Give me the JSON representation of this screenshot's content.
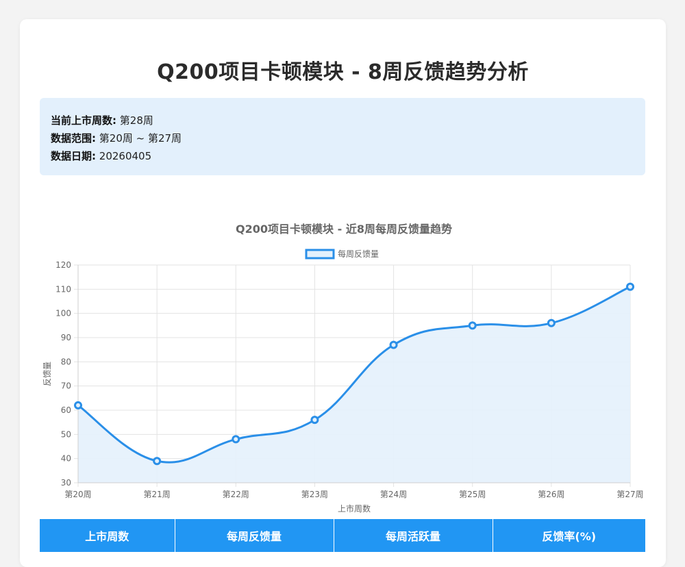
{
  "page": {
    "title": "Q200项目卡顿模块 - 8周反馈趋势分析"
  },
  "info": {
    "current_week_label": "当前上市周数:",
    "current_week_value": "第28周",
    "range_label": "数据范围:",
    "range_value": "第20周 ~ 第27周",
    "date_label": "数据日期:",
    "date_value": "20260405"
  },
  "colors": {
    "accent": "#2196f3",
    "line": "#2a8fe8",
    "fill": "#e4f1fc",
    "info_bg": "#e3f0fc"
  },
  "chart_data": {
    "type": "line",
    "title": "Q200项目卡顿模块 - 近8周每周反馈量趋势",
    "xlabel": "上市周数",
    "ylabel": "反馈量",
    "categories": [
      "第20周",
      "第21周",
      "第22周",
      "第23周",
      "第24周",
      "第25周",
      "第26周",
      "第27周"
    ],
    "series": [
      {
        "name": "每周反馈量",
        "values": [
          62,
          39,
          48,
          56,
          87,
          95,
          96,
          111
        ]
      }
    ],
    "ylim": [
      30,
      120
    ],
    "yticks": [
      30,
      40,
      50,
      60,
      70,
      80,
      90,
      100,
      110,
      120
    ],
    "grid": true,
    "legend": "top-center",
    "fill": true,
    "smooth": true
  },
  "table": {
    "headers": [
      "上市周数",
      "每周反馈量",
      "每周活跃量",
      "反馈率(%)"
    ]
  }
}
